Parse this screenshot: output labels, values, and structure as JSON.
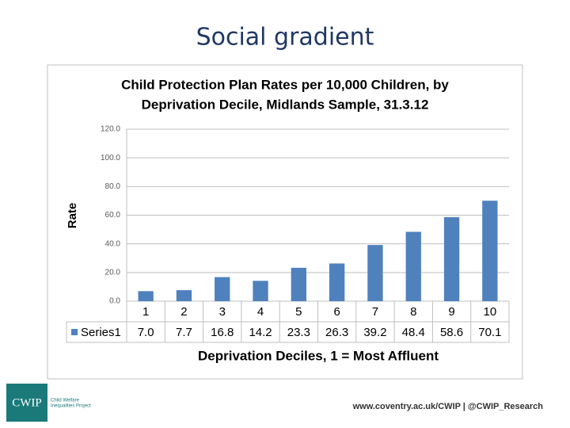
{
  "title": "Social gradient",
  "chart_data": {
    "type": "bar",
    "title": [
      "Child Protection Plan Rates per 10,000 Children, by",
      "Deprivation Decile, Midlands Sample, 31.3.12"
    ],
    "y_label": "Rate",
    "x_label": "Deprivation Deciles, 1 = Most Affluent",
    "categories": [
      "1",
      "2",
      "3",
      "4",
      "5",
      "6",
      "7",
      "8",
      "9",
      "10"
    ],
    "series": [
      {
        "name": "Series1",
        "color": "#4f81bd",
        "values": [
          7.0,
          7.7,
          16.8,
          14.2,
          23.3,
          26.3,
          39.2,
          48.4,
          58.6,
          70.1
        ],
        "value_labels": [
          "7.0",
          "7.7",
          "16.8",
          "14.2",
          "23.3",
          "26.3",
          "39.2",
          "48.4",
          "58.6",
          "70.1"
        ]
      }
    ],
    "ylim": [
      0,
      120
    ],
    "yticks": [
      {
        "value": 0,
        "label": "0.0"
      },
      {
        "value": 20,
        "label": "20.0"
      },
      {
        "value": 40,
        "label": "40.0"
      },
      {
        "value": 60,
        "label": "60.0"
      },
      {
        "value": 80,
        "label": "80.0"
      },
      {
        "value": 100,
        "label": "100.0"
      },
      {
        "value": 120,
        "label": "120.0"
      }
    ],
    "grid": true
  },
  "footer": {
    "logo": "CWIP",
    "logo_caption": [
      "Child Welfare",
      "Inequalities Project"
    ],
    "link": "www.coventry.ac.uk/CWIP | @CWIP_Research"
  }
}
